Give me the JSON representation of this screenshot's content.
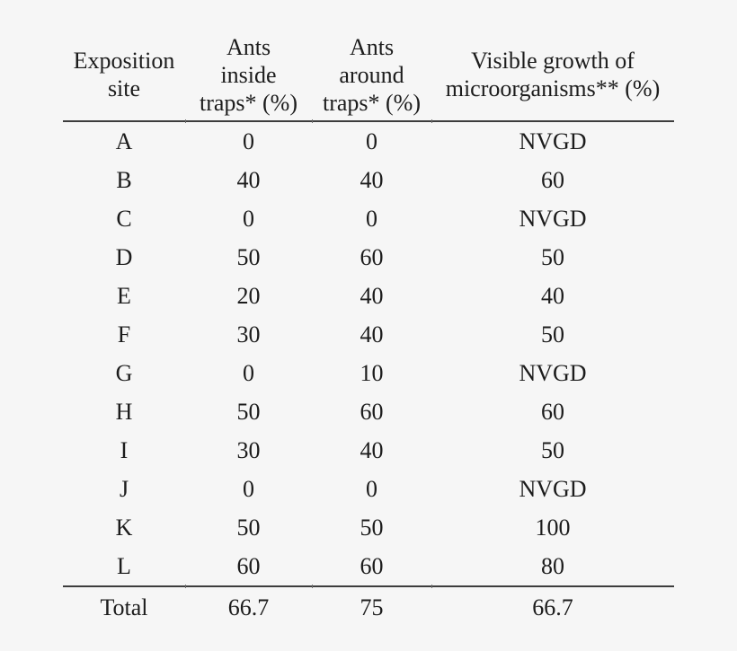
{
  "page": {
    "background_color": "#f6f6f6",
    "text_color": "#1c1c1c",
    "rule_color": "#3d3d3d"
  },
  "table": {
    "columns": [
      {
        "id": "site",
        "header": "Exposition\nsite"
      },
      {
        "id": "inside",
        "header": "Ants\ninside\ntraps* (%)"
      },
      {
        "id": "around",
        "header": "Ants\naround\ntraps* (%)"
      },
      {
        "id": "growth",
        "header": "Visible growth of\nmicroorganisms** (%)"
      }
    ],
    "rows": [
      {
        "site": "A",
        "inside": "0",
        "around": "0",
        "growth": "NVGD"
      },
      {
        "site": "B",
        "inside": "40",
        "around": "40",
        "growth": "60"
      },
      {
        "site": "C",
        "inside": "0",
        "around": "0",
        "growth": "NVGD"
      },
      {
        "site": "D",
        "inside": "50",
        "around": "60",
        "growth": "50"
      },
      {
        "site": "E",
        "inside": "20",
        "around": "40",
        "growth": "40"
      },
      {
        "site": "F",
        "inside": "30",
        "around": "40",
        "growth": "50"
      },
      {
        "site": "G",
        "inside": "0",
        "around": "10",
        "growth": "NVGD"
      },
      {
        "site": "H",
        "inside": "50",
        "around": "60",
        "growth": "60"
      },
      {
        "site": "I",
        "inside": "30",
        "around": "40",
        "growth": "50"
      },
      {
        "site": "J",
        "inside": "0",
        "around": "0",
        "growth": "NVGD"
      },
      {
        "site": "K",
        "inside": "50",
        "around": "50",
        "growth": "100"
      },
      {
        "site": "L",
        "inside": "60",
        "around": "60",
        "growth": "80"
      }
    ],
    "total": {
      "site": "Total",
      "inside": "66.7",
      "around": "75",
      "growth": "66.7"
    }
  }
}
